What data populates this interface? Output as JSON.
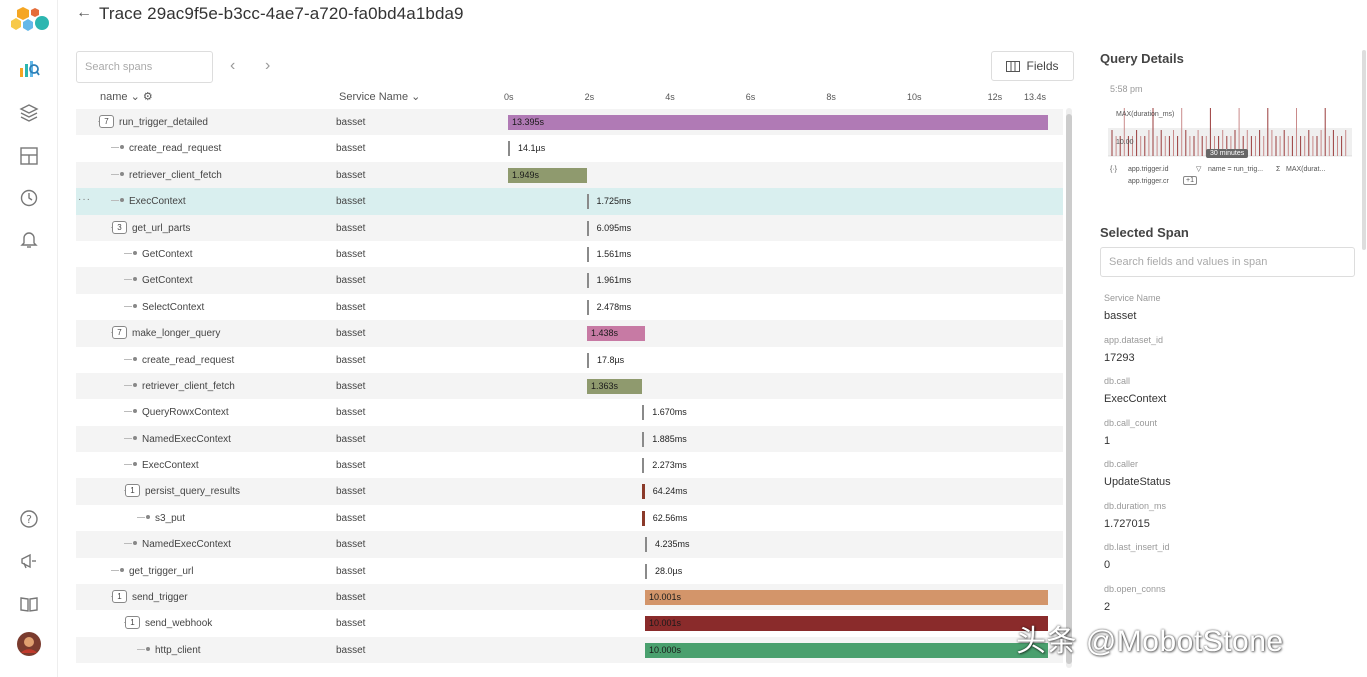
{
  "header": {
    "title": "Trace 29ac9f5e-b3cc-4ae7-a720-fa0bd4a1bda9"
  },
  "toolbar": {
    "search_placeholder": "Search spans",
    "fields_label": "Fields"
  },
  "table": {
    "columns": {
      "name": "name",
      "service": "Service Name"
    },
    "ticks": [
      "0s",
      "2s",
      "4s",
      "6s",
      "8s",
      "10s",
      "12s",
      "13.4s"
    ],
    "total_s": 13.4,
    "rows": [
      {
        "name": "run_trigger_detailed",
        "service": "basset",
        "depth": 0,
        "badge": "7",
        "start": 0.0,
        "duration": 13.395,
        "label": "13.395s",
        "color": "#b07ab5",
        "label_inside": true
      },
      {
        "name": "create_read_request",
        "service": "basset",
        "depth": 1,
        "badge": "",
        "start": 0.0,
        "duration": 0.0,
        "label": "14.1µs",
        "color": "#8a8a8a",
        "label_inside": false
      },
      {
        "name": "retriever_client_fetch",
        "service": "basset",
        "depth": 1,
        "badge": "",
        "start": 0.0,
        "duration": 1.949,
        "label": "1.949s",
        "color": "#8f9a6e",
        "label_inside": true
      },
      {
        "name": "ExecContext",
        "service": "basset",
        "depth": 1,
        "badge": "",
        "start": 1.949,
        "duration": 0.0,
        "label": "1.725ms",
        "color": "#8a8a8a",
        "label_inside": false,
        "selected": true
      },
      {
        "name": "get_url_parts",
        "service": "basset",
        "depth": 1,
        "badge": "3",
        "start": 1.95,
        "duration": 0.0,
        "label": "6.095ms",
        "color": "#8a8a8a",
        "label_inside": false
      },
      {
        "name": "GetContext",
        "service": "basset",
        "depth": 2,
        "badge": "",
        "start": 1.95,
        "duration": 0.0,
        "label": "1.561ms",
        "color": "#8a8a8a",
        "label_inside": false
      },
      {
        "name": "GetContext",
        "service": "basset",
        "depth": 2,
        "badge": "",
        "start": 1.95,
        "duration": 0.0,
        "label": "1.961ms",
        "color": "#8a8a8a",
        "label_inside": false
      },
      {
        "name": "SelectContext",
        "service": "basset",
        "depth": 2,
        "badge": "",
        "start": 1.95,
        "duration": 0.0,
        "label": "2.478ms",
        "color": "#8a8a8a",
        "label_inside": false
      },
      {
        "name": "make_longer_query",
        "service": "basset",
        "depth": 1,
        "badge": "7",
        "start": 1.96,
        "duration": 1.438,
        "label": "1.438s",
        "color": "#c77aa4",
        "label_inside": true
      },
      {
        "name": "create_read_request",
        "service": "basset",
        "depth": 2,
        "badge": "",
        "start": 1.96,
        "duration": 0.0,
        "label": "17.8µs",
        "color": "#8a8a8a",
        "label_inside": false
      },
      {
        "name": "retriever_client_fetch",
        "service": "basset",
        "depth": 2,
        "badge": "",
        "start": 1.96,
        "duration": 1.363,
        "label": "1.363s",
        "color": "#8f9a6e",
        "label_inside": true
      },
      {
        "name": "QueryRowxContext",
        "service": "basset",
        "depth": 2,
        "badge": "",
        "start": 3.33,
        "duration": 0.0,
        "label": "1.670ms",
        "color": "#8a8a8a",
        "label_inside": false
      },
      {
        "name": "NamedExecContext",
        "service": "basset",
        "depth": 2,
        "badge": "",
        "start": 3.33,
        "duration": 0.0,
        "label": "1.885ms",
        "color": "#8a8a8a",
        "label_inside": false
      },
      {
        "name": "ExecContext",
        "service": "basset",
        "depth": 2,
        "badge": "",
        "start": 3.33,
        "duration": 0.0,
        "label": "2.273ms",
        "color": "#8a8a8a",
        "label_inside": false
      },
      {
        "name": "persist_query_results",
        "service": "basset",
        "depth": 2,
        "badge": "1",
        "start": 3.33,
        "duration": 0.064,
        "label": "64.24ms",
        "color": "#8b3a2a",
        "label_inside": false
      },
      {
        "name": "s3_put",
        "service": "basset",
        "depth": 3,
        "badge": "",
        "start": 3.33,
        "duration": 0.063,
        "label": "62.56ms",
        "color": "#8b3a2a",
        "label_inside": false
      },
      {
        "name": "NamedExecContext",
        "service": "basset",
        "depth": 2,
        "badge": "",
        "start": 3.4,
        "duration": 0.0,
        "label": "4.235ms",
        "color": "#8a8a8a",
        "label_inside": false
      },
      {
        "name": "get_trigger_url",
        "service": "basset",
        "depth": 1,
        "badge": "",
        "start": 3.4,
        "duration": 0.0,
        "label": "28.0µs",
        "color": "#8a8a8a",
        "label_inside": false
      },
      {
        "name": "send_trigger",
        "service": "basset",
        "depth": 1,
        "badge": "1",
        "start": 3.4,
        "duration": 10.001,
        "label": "10.001s",
        "color": "#d3956a",
        "label_inside": true
      },
      {
        "name": "send_webhook",
        "service": "basset",
        "depth": 2,
        "badge": "1",
        "start": 3.4,
        "duration": 10.001,
        "label": "10.001s",
        "color": "#8a2b2b",
        "label_inside": true
      },
      {
        "name": "http_client",
        "service": "basset",
        "depth": 3,
        "badge": "",
        "start": 3.4,
        "duration": 10.0,
        "label": "10.000s",
        "color": "#4aa06e",
        "label_inside": true
      }
    ]
  },
  "query_details": {
    "title": "Query Details",
    "time": "5:58 pm",
    "metric": "MAX(duration_ms)",
    "value": "10.00",
    "tooltip": "30 minutes",
    "filters": [
      "app.trigger.id",
      "name = run_trig...",
      "MAX(durat...",
      "app.trigger.cr",
      "+1"
    ]
  },
  "selected_span": {
    "title": "Selected Span",
    "search_placeholder": "Search fields and values in span",
    "fields": [
      {
        "label": "Service Name",
        "value": "basset"
      },
      {
        "label": "app.dataset_id",
        "value": "17293"
      },
      {
        "label": "db.call",
        "value": "ExecContext"
      },
      {
        "label": "db.call_count",
        "value": "1"
      },
      {
        "label": "db.caller",
        "value": "UpdateStatus"
      },
      {
        "label": "db.duration_ms",
        "value": "1.727015"
      },
      {
        "label": "db.last_insert_id",
        "value": "0"
      },
      {
        "label": "db.open_conns",
        "value": "2"
      }
    ]
  },
  "watermark": "头条 @MobotStone"
}
